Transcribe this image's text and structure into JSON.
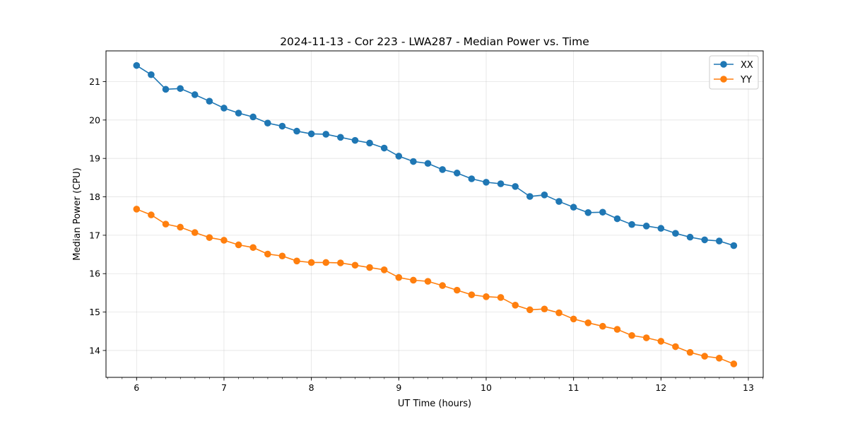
{
  "chart_data": {
    "type": "line",
    "title": "2024-11-13 - Cor 223 - LWA287 - Median Power vs. Time",
    "xlabel": "UT Time (hours)",
    "ylabel": "Median Power (CPU)",
    "xlim": [
      5.65,
      13.17
    ],
    "ylim": [
      13.3,
      21.8
    ],
    "xticks": [
      6,
      7,
      8,
      9,
      10,
      11,
      12,
      13
    ],
    "xtick_labels": [
      "6",
      "7",
      "8",
      "9",
      "10",
      "11",
      "12",
      "13"
    ],
    "yticks": [
      14,
      15,
      16,
      17,
      18,
      19,
      20,
      21
    ],
    "ytick_labels": [
      "14",
      "15",
      "16",
      "17",
      "18",
      "19",
      "20",
      "21"
    ],
    "grid": true,
    "legend_position": "top-right",
    "x": [
      6.0,
      6.1667,
      6.3333,
      6.5,
      6.6667,
      6.8333,
      7.0,
      7.1667,
      7.3333,
      7.5,
      7.6667,
      7.8333,
      8.0,
      8.1667,
      8.3333,
      8.5,
      8.6667,
      8.8333,
      9.0,
      9.1667,
      9.3333,
      9.5,
      9.6667,
      9.8333,
      10.0,
      10.1667,
      10.3333,
      10.5,
      10.6667,
      10.8333,
      11.0,
      11.1667,
      11.3333,
      11.5,
      11.6667,
      11.8333,
      12.0,
      12.1667,
      12.3333,
      12.5,
      12.6667,
      12.8333
    ],
    "series": [
      {
        "name": "XX",
        "color": "#1f77b4",
        "values": [
          21.42,
          21.18,
          20.8,
          20.82,
          20.66,
          20.49,
          20.31,
          20.18,
          20.08,
          19.92,
          19.84,
          19.71,
          19.64,
          19.63,
          19.55,
          19.47,
          19.4,
          19.27,
          19.06,
          18.92,
          18.87,
          18.71,
          18.62,
          18.47,
          18.38,
          18.34,
          18.27,
          18.01,
          18.05,
          17.88,
          17.73,
          17.59,
          17.6,
          17.43,
          17.28,
          17.24,
          17.18,
          17.05,
          16.95,
          16.88,
          16.85,
          16.73
        ]
      },
      {
        "name": "YY",
        "color": "#ff7f0e",
        "values": [
          17.68,
          17.53,
          17.29,
          17.21,
          17.07,
          16.94,
          16.87,
          16.75,
          16.68,
          16.51,
          16.46,
          16.33,
          16.29,
          16.29,
          16.28,
          16.22,
          16.16,
          16.1,
          15.9,
          15.83,
          15.8,
          15.69,
          15.57,
          15.45,
          15.4,
          15.38,
          15.18,
          15.06,
          15.08,
          14.98,
          14.82,
          14.72,
          14.63,
          14.55,
          14.39,
          14.33,
          14.24,
          14.1,
          13.95,
          13.85,
          13.8,
          13.65
        ]
      }
    ]
  }
}
